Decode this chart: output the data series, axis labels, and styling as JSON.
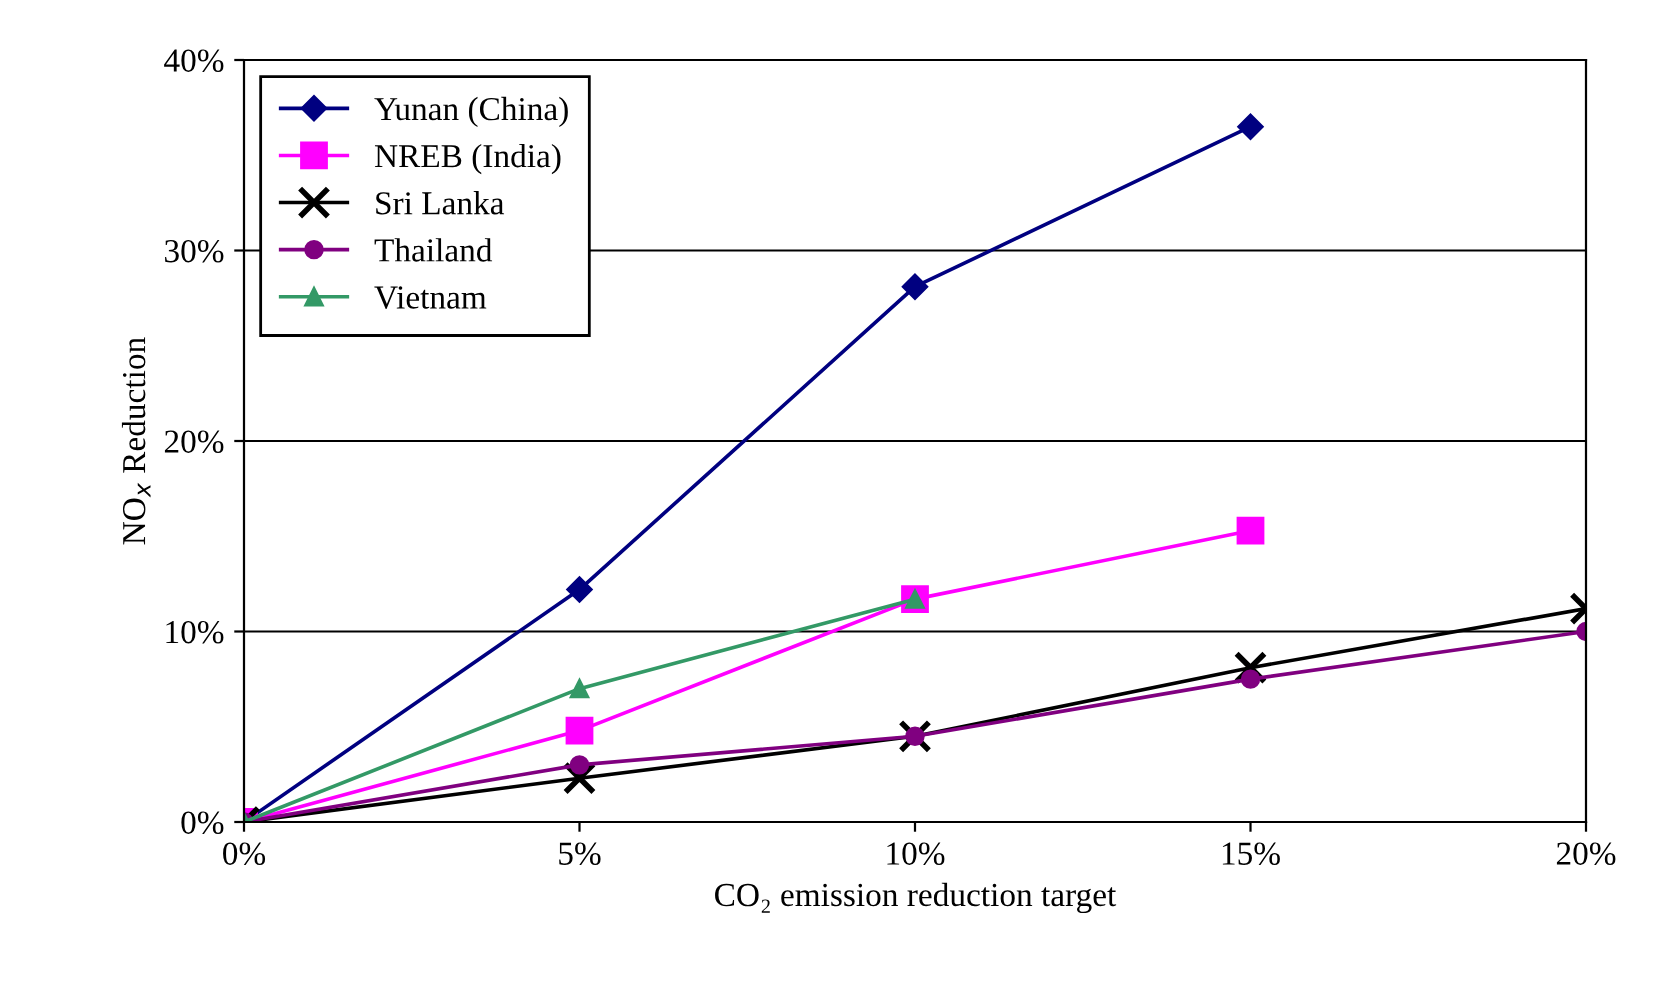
{
  "chart_data": {
    "type": "line",
    "xlabel": "CO₂ emission reduction target",
    "ylabel": "NO$_{x}$ Reduction",
    "x": [
      0,
      5,
      10,
      15,
      20
    ],
    "series": [
      {
        "name": "Yunan (China)",
        "color": "#000080",
        "marker": "diamond",
        "values": [
          0,
          12.2,
          28.1,
          36.5,
          null
        ]
      },
      {
        "name": "NREB (India)",
        "color": "#ff00ff",
        "marker": "square",
        "values": [
          0,
          4.8,
          11.7,
          15.3,
          null
        ]
      },
      {
        "name": "Sri Lanka",
        "color": "#000000",
        "marker": "cross",
        "values": [
          0,
          2.3,
          4.5,
          8.1,
          11.2
        ]
      },
      {
        "name": "Thailand",
        "color": "#800080",
        "marker": "circle",
        "values": [
          0,
          3.0,
          4.5,
          7.5,
          10.0
        ]
      },
      {
        "name": "Vietnam",
        "color": "#339966",
        "marker": "triangle",
        "values": [
          0,
          7.0,
          11.7,
          null,
          null
        ]
      }
    ],
    "xlim": [
      0,
      20
    ],
    "ylim": [
      0,
      40
    ],
    "xticks": [
      {
        "value": 0,
        "label": "0%"
      },
      {
        "value": 5,
        "label": "5%"
      },
      {
        "value": 10,
        "label": "10%"
      },
      {
        "value": 15,
        "label": "15%"
      },
      {
        "value": 20,
        "label": "20%"
      }
    ],
    "yticks": [
      {
        "value": 0,
        "label": "0%"
      },
      {
        "value": 10,
        "label": "10%"
      },
      {
        "value": 20,
        "label": "20%"
      },
      {
        "value": 30,
        "label": "30%"
      },
      {
        "value": 40,
        "label": "40%"
      }
    ],
    "grid": "y",
    "legend": "top left",
    "line_style": "solid"
  }
}
